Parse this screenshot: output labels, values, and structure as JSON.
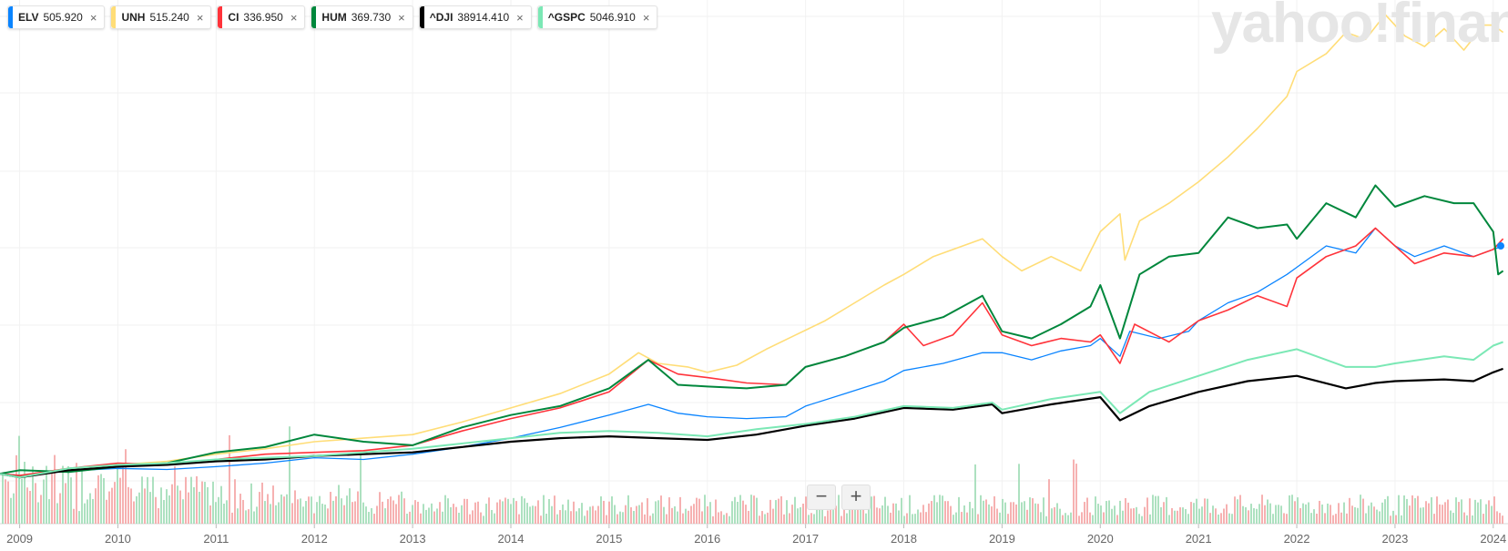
{
  "legend": [
    {
      "symbol": "ELV",
      "value": "505.920",
      "color": "#0a84ff"
    },
    {
      "symbol": "UNH",
      "value": "515.240",
      "color": "#ffdd77"
    },
    {
      "symbol": "CI",
      "value": "336.950",
      "color": "#ff333a"
    },
    {
      "symbol": "HUM",
      "value": "369.730",
      "color": "#00873c"
    },
    {
      "symbol": "^DJI",
      "value": "38914.410",
      "color": "#000000"
    },
    {
      "symbol": "^GSPC",
      "value": "5046.910",
      "color": "#7be8b5"
    }
  ],
  "close_glyph": "×",
  "watermark": "yahoo!finance",
  "zoom": {
    "out_label": "−",
    "in_label": "+"
  },
  "chart_data": {
    "type": "line",
    "x_ticks": [
      "2009",
      "2010",
      "2011",
      "2012",
      "2013",
      "2014",
      "2015",
      "2016",
      "2017",
      "2018",
      "2019",
      "2020",
      "2021",
      "2022",
      "2023",
      "2024"
    ],
    "x_range": [
      2008.8,
      2024.15
    ],
    "y_unit": "percent change",
    "ylim": [
      -20,
      1300
    ],
    "grid": true,
    "legend_position": "top-left",
    "series": [
      {
        "name": "UNH",
        "color": "#ffdd77",
        "width": 1.6,
        "points": [
          [
            2008.8,
            0
          ],
          [
            2009.0,
            -8
          ],
          [
            2009.5,
            15
          ],
          [
            2010.0,
            25
          ],
          [
            2010.5,
            35
          ],
          [
            2011.0,
            55
          ],
          [
            2011.5,
            70
          ],
          [
            2012.0,
            90
          ],
          [
            2012.5,
            100
          ],
          [
            2013.0,
            110
          ],
          [
            2013.5,
            145
          ],
          [
            2014.0,
            185
          ],
          [
            2014.5,
            225
          ],
          [
            2015.0,
            280
          ],
          [
            2015.3,
            340
          ],
          [
            2015.5,
            310
          ],
          [
            2015.8,
            300
          ],
          [
            2016.0,
            285
          ],
          [
            2016.3,
            305
          ],
          [
            2016.6,
            350
          ],
          [
            2016.9,
            390
          ],
          [
            2017.2,
            430
          ],
          [
            2017.5,
            480
          ],
          [
            2017.8,
            530
          ],
          [
            2018.0,
            560
          ],
          [
            2018.3,
            610
          ],
          [
            2018.6,
            640
          ],
          [
            2018.8,
            660
          ],
          [
            2019.0,
            610
          ],
          [
            2019.2,
            570
          ],
          [
            2019.5,
            610
          ],
          [
            2019.8,
            570
          ],
          [
            2020.0,
            680
          ],
          [
            2020.2,
            730
          ],
          [
            2020.25,
            600
          ],
          [
            2020.4,
            710
          ],
          [
            2020.7,
            760
          ],
          [
            2021.0,
            820
          ],
          [
            2021.3,
            890
          ],
          [
            2021.6,
            970
          ],
          [
            2021.9,
            1060
          ],
          [
            2022.0,
            1130
          ],
          [
            2022.3,
            1180
          ],
          [
            2022.5,
            1240
          ],
          [
            2022.7,
            1220
          ],
          [
            2022.9,
            1290
          ],
          [
            2023.1,
            1230
          ],
          [
            2023.3,
            1200
          ],
          [
            2023.5,
            1250
          ],
          [
            2023.7,
            1190
          ],
          [
            2023.9,
            1260
          ],
          [
            2024.0,
            1260
          ],
          [
            2024.1,
            1240
          ]
        ]
      },
      {
        "name": "ELV",
        "color": "#0a84ff",
        "width": 1.3,
        "points": [
          [
            2008.8,
            0
          ],
          [
            2009.0,
            -5
          ],
          [
            2009.5,
            8
          ],
          [
            2010.0,
            15
          ],
          [
            2010.5,
            12
          ],
          [
            2011.0,
            20
          ],
          [
            2011.5,
            30
          ],
          [
            2012.0,
            45
          ],
          [
            2012.5,
            40
          ],
          [
            2013.0,
            55
          ],
          [
            2013.5,
            75
          ],
          [
            2014.0,
            100
          ],
          [
            2014.5,
            130
          ],
          [
            2015.0,
            165
          ],
          [
            2015.4,
            195
          ],
          [
            2015.7,
            170
          ],
          [
            2016.0,
            160
          ],
          [
            2016.4,
            155
          ],
          [
            2016.8,
            160
          ],
          [
            2017.0,
            190
          ],
          [
            2017.4,
            225
          ],
          [
            2017.8,
            260
          ],
          [
            2018.0,
            290
          ],
          [
            2018.4,
            310
          ],
          [
            2018.8,
            340
          ],
          [
            2019.0,
            340
          ],
          [
            2019.3,
            320
          ],
          [
            2019.6,
            345
          ],
          [
            2019.9,
            360
          ],
          [
            2020.0,
            380
          ],
          [
            2020.2,
            330
          ],
          [
            2020.3,
            400
          ],
          [
            2020.6,
            380
          ],
          [
            2020.9,
            400
          ],
          [
            2021.0,
            430
          ],
          [
            2021.3,
            480
          ],
          [
            2021.6,
            510
          ],
          [
            2021.9,
            560
          ],
          [
            2022.0,
            580
          ],
          [
            2022.3,
            640
          ],
          [
            2022.6,
            620
          ],
          [
            2022.8,
            690
          ],
          [
            2023.0,
            640
          ],
          [
            2023.2,
            610
          ],
          [
            2023.5,
            640
          ],
          [
            2023.8,
            610
          ],
          [
            2024.0,
            630
          ],
          [
            2024.1,
            640
          ]
        ]
      },
      {
        "name": "CI",
        "color": "#ff333a",
        "width": 1.6,
        "points": [
          [
            2008.8,
            0
          ],
          [
            2009.0,
            -5
          ],
          [
            2009.5,
            15
          ],
          [
            2010.0,
            30
          ],
          [
            2010.5,
            25
          ],
          [
            2011.0,
            40
          ],
          [
            2011.5,
            55
          ],
          [
            2012.0,
            60
          ],
          [
            2012.5,
            65
          ],
          [
            2013.0,
            80
          ],
          [
            2013.5,
            120
          ],
          [
            2014.0,
            155
          ],
          [
            2014.5,
            185
          ],
          [
            2015.0,
            230
          ],
          [
            2015.4,
            320
          ],
          [
            2015.7,
            280
          ],
          [
            2016.0,
            270
          ],
          [
            2016.4,
            255
          ],
          [
            2016.8,
            250
          ],
          [
            2017.0,
            300
          ],
          [
            2017.4,
            330
          ],
          [
            2017.8,
            370
          ],
          [
            2018.0,
            420
          ],
          [
            2018.2,
            360
          ],
          [
            2018.5,
            390
          ],
          [
            2018.8,
            480
          ],
          [
            2019.0,
            390
          ],
          [
            2019.3,
            360
          ],
          [
            2019.6,
            380
          ],
          [
            2019.9,
            370
          ],
          [
            2020.0,
            390
          ],
          [
            2020.2,
            310
          ],
          [
            2020.35,
            420
          ],
          [
            2020.7,
            370
          ],
          [
            2021.0,
            430
          ],
          [
            2021.3,
            460
          ],
          [
            2021.6,
            500
          ],
          [
            2021.9,
            470
          ],
          [
            2022.0,
            550
          ],
          [
            2022.3,
            610
          ],
          [
            2022.6,
            640
          ],
          [
            2022.8,
            690
          ],
          [
            2023.0,
            640
          ],
          [
            2023.2,
            590
          ],
          [
            2023.5,
            620
          ],
          [
            2023.8,
            610
          ],
          [
            2024.0,
            630
          ],
          [
            2024.1,
            660
          ]
        ]
      },
      {
        "name": "HUM",
        "color": "#00873c",
        "width": 2.0,
        "points": [
          [
            2008.8,
            0
          ],
          [
            2009.0,
            10
          ],
          [
            2009.5,
            5
          ],
          [
            2010.0,
            20
          ],
          [
            2010.5,
            30
          ],
          [
            2011.0,
            60
          ],
          [
            2011.5,
            75
          ],
          [
            2012.0,
            110
          ],
          [
            2012.5,
            90
          ],
          [
            2013.0,
            80
          ],
          [
            2013.5,
            130
          ],
          [
            2014.0,
            165
          ],
          [
            2014.5,
            190
          ],
          [
            2015.0,
            240
          ],
          [
            2015.4,
            320
          ],
          [
            2015.7,
            250
          ],
          [
            2016.0,
            245
          ],
          [
            2016.4,
            240
          ],
          [
            2016.8,
            250
          ],
          [
            2017.0,
            300
          ],
          [
            2017.4,
            330
          ],
          [
            2017.8,
            370
          ],
          [
            2018.0,
            410
          ],
          [
            2018.4,
            440
          ],
          [
            2018.8,
            500
          ],
          [
            2019.0,
            400
          ],
          [
            2019.3,
            380
          ],
          [
            2019.6,
            420
          ],
          [
            2019.9,
            470
          ],
          [
            2020.0,
            530
          ],
          [
            2020.2,
            380
          ],
          [
            2020.4,
            560
          ],
          [
            2020.7,
            610
          ],
          [
            2021.0,
            620
          ],
          [
            2021.3,
            720
          ],
          [
            2021.6,
            690
          ],
          [
            2021.9,
            700
          ],
          [
            2022.0,
            660
          ],
          [
            2022.3,
            760
          ],
          [
            2022.6,
            720
          ],
          [
            2022.8,
            810
          ],
          [
            2023.0,
            750
          ],
          [
            2023.3,
            780
          ],
          [
            2023.6,
            760
          ],
          [
            2023.8,
            760
          ],
          [
            2024.0,
            680
          ],
          [
            2024.05,
            560
          ],
          [
            2024.1,
            570
          ]
        ]
      },
      {
        "name": "^DJI",
        "color": "#000000",
        "width": 2.2,
        "points": [
          [
            2008.8,
            0
          ],
          [
            2009.0,
            -10
          ],
          [
            2009.5,
            10
          ],
          [
            2010.0,
            20
          ],
          [
            2010.5,
            25
          ],
          [
            2011.0,
            35
          ],
          [
            2011.5,
            40
          ],
          [
            2012.0,
            50
          ],
          [
            2012.5,
            55
          ],
          [
            2013.0,
            60
          ],
          [
            2013.5,
            75
          ],
          [
            2014.0,
            90
          ],
          [
            2014.5,
            100
          ],
          [
            2015.0,
            105
          ],
          [
            2015.5,
            100
          ],
          [
            2016.0,
            95
          ],
          [
            2016.5,
            110
          ],
          [
            2017.0,
            135
          ],
          [
            2017.5,
            155
          ],
          [
            2018.0,
            185
          ],
          [
            2018.5,
            180
          ],
          [
            2018.9,
            195
          ],
          [
            2019.0,
            170
          ],
          [
            2019.5,
            195
          ],
          [
            2020.0,
            215
          ],
          [
            2020.2,
            150
          ],
          [
            2020.5,
            190
          ],
          [
            2021.0,
            230
          ],
          [
            2021.5,
            260
          ],
          [
            2022.0,
            275
          ],
          [
            2022.5,
            240
          ],
          [
            2022.8,
            255
          ],
          [
            2023.0,
            260
          ],
          [
            2023.5,
            265
          ],
          [
            2023.8,
            260
          ],
          [
            2024.0,
            285
          ],
          [
            2024.1,
            295
          ]
        ]
      },
      {
        "name": "^GSPC",
        "color": "#7be8b5",
        "width": 2.0,
        "points": [
          [
            2008.8,
            0
          ],
          [
            2009.0,
            -10
          ],
          [
            2009.5,
            15
          ],
          [
            2010.0,
            25
          ],
          [
            2010.5,
            30
          ],
          [
            2011.0,
            40
          ],
          [
            2011.5,
            45
          ],
          [
            2012.0,
            50
          ],
          [
            2012.5,
            60
          ],
          [
            2013.0,
            70
          ],
          [
            2013.5,
            85
          ],
          [
            2014.0,
            100
          ],
          [
            2014.5,
            115
          ],
          [
            2015.0,
            120
          ],
          [
            2015.5,
            115
          ],
          [
            2016.0,
            105
          ],
          [
            2016.5,
            125
          ],
          [
            2017.0,
            140
          ],
          [
            2017.5,
            160
          ],
          [
            2018.0,
            190
          ],
          [
            2018.5,
            185
          ],
          [
            2018.9,
            200
          ],
          [
            2019.0,
            180
          ],
          [
            2019.5,
            210
          ],
          [
            2020.0,
            230
          ],
          [
            2020.2,
            170
          ],
          [
            2020.5,
            230
          ],
          [
            2021.0,
            275
          ],
          [
            2021.5,
            320
          ],
          [
            2022.0,
            350
          ],
          [
            2022.5,
            300
          ],
          [
            2022.8,
            300
          ],
          [
            2023.0,
            310
          ],
          [
            2023.5,
            330
          ],
          [
            2023.8,
            320
          ],
          [
            2024.0,
            360
          ],
          [
            2024.1,
            370
          ]
        ]
      }
    ]
  }
}
